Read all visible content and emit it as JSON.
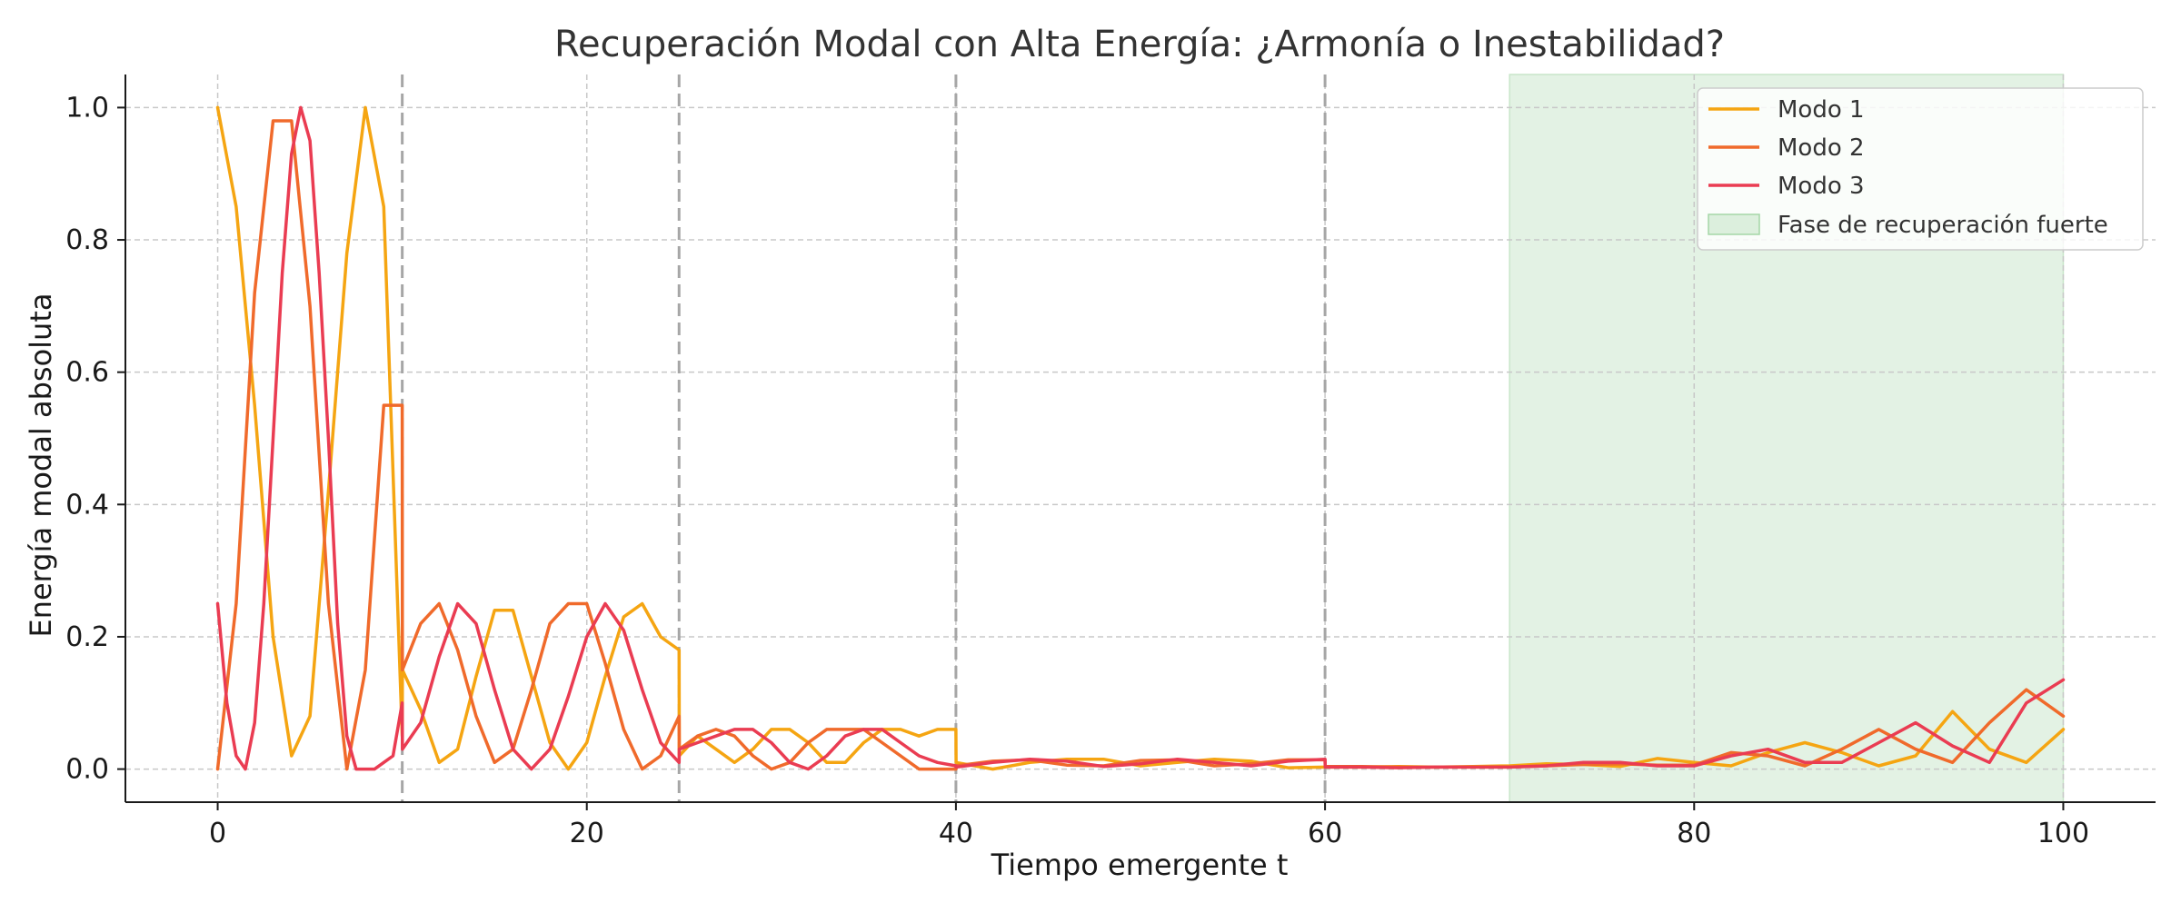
{
  "chart_data": {
    "type": "line",
    "title": "Recuperación Modal con Alta Energía: ¿Armonía o Inestabilidad?",
    "xlabel": "Tiempo emergente t",
    "ylabel": "Energía modal absoluta",
    "xlim": [
      -5,
      105
    ],
    "ylim": [
      -0.05,
      1.05
    ],
    "xticks": [
      0,
      20,
      40,
      60,
      80,
      100
    ],
    "yticks": [
      0.0,
      0.2,
      0.4,
      0.6,
      0.8,
      1.0
    ],
    "grid": true,
    "legend_position": "top-right",
    "phase_boundaries": [
      10,
      25,
      40,
      60
    ],
    "recovery_band": {
      "label": "Fase de recuperación fuerte",
      "x_start": 70,
      "x_end": 100,
      "color": "#c8e6c9"
    },
    "series": [
      {
        "name": "Modo 1",
        "color": "#f5a512",
        "x": [
          0,
          1,
          2,
          3,
          4,
          5,
          6,
          7,
          8,
          9,
          10,
          10.01,
          11,
          12,
          13,
          14,
          15,
          16,
          17,
          18,
          19,
          20,
          21,
          22,
          23,
          24,
          25,
          25.01,
          26,
          27,
          28,
          29,
          30,
          31,
          32,
          33,
          34,
          35,
          36,
          37,
          38,
          39,
          40,
          40.01,
          42,
          44,
          46,
          48,
          50,
          52,
          54,
          56,
          58,
          60,
          60.01,
          62,
          64,
          66,
          68,
          70,
          72,
          74,
          76,
          78,
          80,
          82,
          84,
          86,
          88,
          90,
          92,
          94,
          96,
          98,
          100
        ],
        "values": [
          1.0,
          0.85,
          0.55,
          0.2,
          0.02,
          0.08,
          0.42,
          0.78,
          1.0,
          0.85,
          0.05,
          0.15,
          0.09,
          0.01,
          0.03,
          0.14,
          0.24,
          0.24,
          0.14,
          0.04,
          0.0,
          0.04,
          0.14,
          0.23,
          0.25,
          0.2,
          0.18,
          0.02,
          0.05,
          0.03,
          0.01,
          0.03,
          0.06,
          0.06,
          0.04,
          0.01,
          0.01,
          0.04,
          0.06,
          0.06,
          0.05,
          0.06,
          0.06,
          0.01,
          0.0,
          0.01,
          0.015,
          0.015,
          0.005,
          0.01,
          0.015,
          0.012,
          0.002,
          0.003,
          0.003,
          0.003,
          0.004,
          0.003,
          0.004,
          0.005,
          0.008,
          0.007,
          0.004,
          0.016,
          0.01,
          0.005,
          0.025,
          0.04,
          0.025,
          0.005,
          0.02,
          0.087,
          0.03,
          0.01,
          0.06
        ]
      },
      {
        "name": "Modo 2",
        "color": "#f06a2b",
        "x": [
          0,
          1,
          2,
          3,
          4,
          5,
          6,
          7,
          8,
          9,
          10,
          10.01,
          11,
          12,
          13,
          14,
          15,
          16,
          17,
          18,
          19,
          20,
          21,
          22,
          23,
          24,
          25,
          25.01,
          26,
          27,
          28,
          29,
          30,
          31,
          32,
          33,
          34,
          35,
          36,
          37,
          38,
          39,
          40,
          40.01,
          42,
          44,
          46,
          48,
          50,
          52,
          54,
          56,
          58,
          60,
          60.01,
          62,
          64,
          66,
          68,
          70,
          72,
          74,
          76,
          78,
          80,
          82,
          84,
          86,
          88,
          90,
          92,
          94,
          96,
          98,
          100
        ],
        "values": [
          0.0,
          0.25,
          0.72,
          0.98,
          0.98,
          0.7,
          0.25,
          0.0,
          0.15,
          0.55,
          0.55,
          0.15,
          0.22,
          0.25,
          0.18,
          0.08,
          0.01,
          0.03,
          0.12,
          0.22,
          0.25,
          0.25,
          0.16,
          0.06,
          0.0,
          0.02,
          0.08,
          0.03,
          0.05,
          0.06,
          0.05,
          0.02,
          0.0,
          0.01,
          0.04,
          0.06,
          0.06,
          0.06,
          0.04,
          0.02,
          0.0,
          0.0,
          0.0,
          0.005,
          0.012,
          0.014,
          0.006,
          0.005,
          0.013,
          0.014,
          0.005,
          0.008,
          0.014,
          0.014,
          0.004,
          0.004,
          0.003,
          0.003,
          0.003,
          0.003,
          0.005,
          0.007,
          0.008,
          0.006,
          0.006,
          0.025,
          0.02,
          0.005,
          0.03,
          0.06,
          0.03,
          0.01,
          0.07,
          0.12,
          0.08
        ]
      },
      {
        "name": "Modo 3",
        "color": "#ea3c52",
        "x": [
          0,
          0.5,
          1,
          1.5,
          2,
          2.5,
          3,
          3.5,
          4,
          4.5,
          5,
          5.5,
          6,
          6.5,
          7,
          7.5,
          8,
          8.5,
          9,
          9.5,
          10,
          10.01,
          11,
          12,
          13,
          14,
          15,
          16,
          17,
          18,
          19,
          20,
          21,
          22,
          23,
          24,
          25,
          25.01,
          26,
          27,
          28,
          29,
          30,
          31,
          32,
          33,
          34,
          35,
          36,
          37,
          38,
          39,
          40,
          40.01,
          42,
          44,
          46,
          48,
          50,
          52,
          54,
          56,
          58,
          60,
          60.01,
          62,
          64,
          66,
          68,
          70,
          72,
          74,
          76,
          78,
          80,
          82,
          84,
          86,
          88,
          90,
          92,
          94,
          96,
          98,
          100
        ],
        "values": [
          0.25,
          0.1,
          0.02,
          0.0,
          0.07,
          0.25,
          0.5,
          0.75,
          0.93,
          1.0,
          0.95,
          0.75,
          0.5,
          0.22,
          0.05,
          0.0,
          0.0,
          0.0,
          0.01,
          0.02,
          0.1,
          0.03,
          0.07,
          0.17,
          0.25,
          0.22,
          0.12,
          0.03,
          0.0,
          0.03,
          0.11,
          0.2,
          0.25,
          0.21,
          0.12,
          0.04,
          0.01,
          0.03,
          0.04,
          0.05,
          0.06,
          0.06,
          0.04,
          0.01,
          0.0,
          0.02,
          0.05,
          0.06,
          0.06,
          0.04,
          0.02,
          0.01,
          0.005,
          0.003,
          0.01,
          0.015,
          0.012,
          0.004,
          0.008,
          0.015,
          0.01,
          0.005,
          0.012,
          0.015,
          0.003,
          0.003,
          0.002,
          0.003,
          0.003,
          0.003,
          0.005,
          0.01,
          0.01,
          0.005,
          0.005,
          0.02,
          0.03,
          0.01,
          0.01,
          0.04,
          0.07,
          0.035,
          0.01,
          0.1,
          0.135
        ]
      }
    ]
  }
}
